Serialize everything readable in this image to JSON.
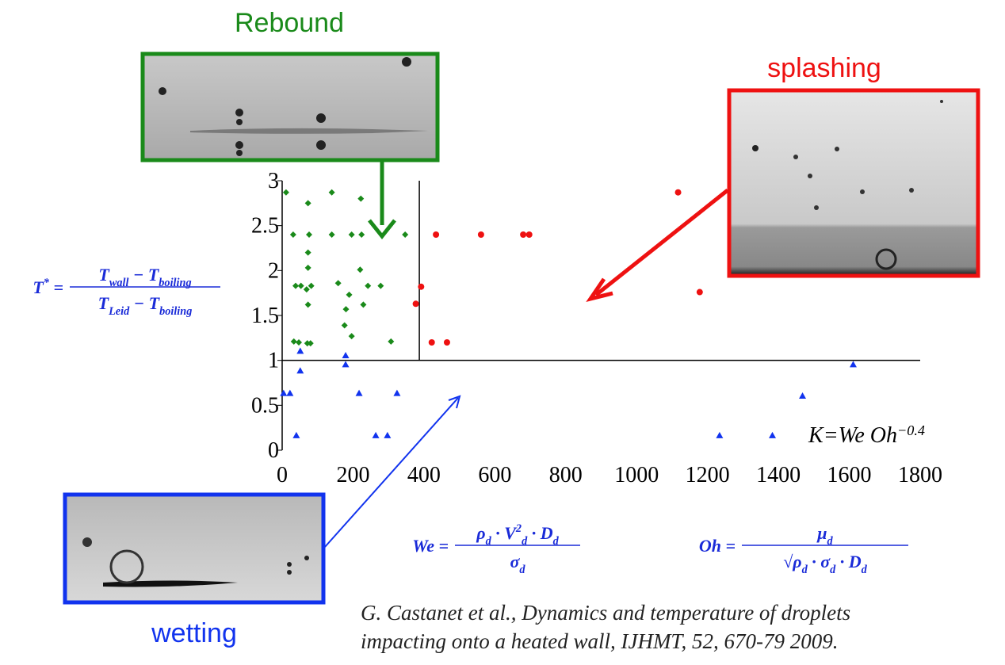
{
  "chart_data": {
    "type": "scatter",
    "xlim": [
      0,
      1800
    ],
    "ylim": [
      0,
      3
    ],
    "xticks": [
      0,
      200,
      400,
      600,
      800,
      1000,
      1200,
      1400,
      1600,
      1800
    ],
    "yticks": [
      0,
      0.5,
      1,
      1.5,
      2,
      2.5,
      3
    ],
    "series": [
      {
        "color": "#1a8a1a",
        "marker": "diamond",
        "x": [
          11,
          73,
          140,
          222,
          31,
          76,
          140,
          196,
          224,
          347,
          73,
          73,
          220,
          38,
          53,
          82,
          69,
          158,
          242,
          278,
          189,
          73,
          180,
          229,
          176,
          196,
          33,
          47,
          71,
          80,
          307
        ],
        "values": [
          2.87,
          2.75,
          2.87,
          2.8,
          2.4,
          2.4,
          2.4,
          2.4,
          2.4,
          2.4,
          2.2,
          2.03,
          2.01,
          1.83,
          1.83,
          1.83,
          1.79,
          1.86,
          1.83,
          1.83,
          1.73,
          1.62,
          1.57,
          1.62,
          1.39,
          1.27,
          1.21,
          1.2,
          1.19,
          1.19,
          1.21
        ]
      },
      {
        "color": "#ee1111",
        "marker": "circle",
        "x": [
          434,
          561,
          680,
          697,
          392,
          377,
          422,
          465,
          1117,
          1178
        ],
        "values": [
          2.4,
          2.4,
          2.4,
          2.4,
          1.82,
          1.63,
          1.2,
          1.2,
          2.87,
          1.76
        ]
      },
      {
        "color": "#1133ee",
        "marker": "triangle",
        "x": [
          4,
          22,
          40,
          51,
          51,
          179,
          179,
          217,
          264,
          297,
          324,
          1234,
          1383,
          1468,
          1611
        ],
        "values": [
          0.63,
          0.63,
          0.16,
          1.1,
          0.88,
          1.05,
          0.95,
          0.63,
          0.16,
          0.16,
          0.63,
          0.16,
          0.16,
          0.6,
          0.95
        ]
      }
    ],
    "regime_lines": {
      "x": 387,
      "y": 1
    },
    "annotation": [
      {
        "text": "K"
      },
      {
        "text": "="
      },
      {
        "text": "We Oh",
        "sup": "−0.4"
      }
    ]
  },
  "labels": {
    "rebound": "Rebound",
    "splashing": "splashing",
    "wetting": "wetting"
  },
  "formulas": {
    "t_star": {
      "lhs": [
        {
          "text": "T",
          "sup": "*"
        },
        {
          "text": " ="
        }
      ],
      "numerator": [
        {
          "text": "T",
          "sub": "wall"
        },
        {
          "text": " − "
        },
        {
          "text": "T",
          "sub": "boiling"
        }
      ],
      "denominator": [
        {
          "text": "T",
          "sub": "Leid"
        },
        {
          "text": " − "
        },
        {
          "text": "T",
          "sub": "boiling"
        }
      ]
    },
    "we": {
      "lhs": [
        {
          "text": "We ="
        }
      ],
      "numerator": [
        {
          "text": "ρ",
          "sub": "d"
        },
        {
          "text": " · "
        },
        {
          "text": "V",
          "sub": "d",
          "sup": "2"
        },
        {
          "text": " · "
        },
        {
          "text": "D",
          "sub": "d"
        }
      ],
      "denominator": [
        {
          "text": "σ",
          "sub": "d"
        }
      ]
    },
    "oh": {
      "lhs": [
        {
          "text": "Oh ="
        }
      ],
      "numerator": [
        {
          "text": "μ",
          "sub": "d"
        }
      ],
      "denominator": [
        {
          "text": "√"
        },
        {
          "text": "ρ",
          "sub": "d"
        },
        {
          "text": " · "
        },
        {
          "text": "σ",
          "sub": "d"
        },
        {
          "text": " · "
        },
        {
          "text": "D",
          "sub": "d"
        }
      ]
    }
  },
  "citation": [
    "G. Castanet et al., Dynamics and temperature of  droplets",
    "impacting onto a heated wall, IJHMT, 52, 670-79 2009."
  ]
}
